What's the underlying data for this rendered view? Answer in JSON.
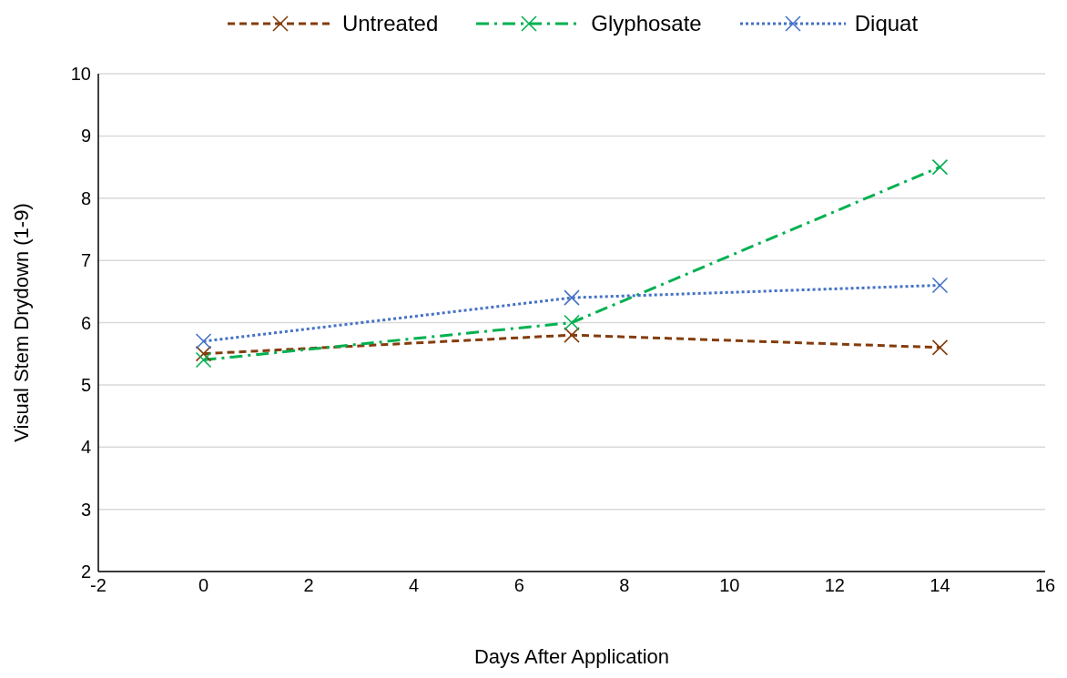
{
  "chart_data": {
    "type": "line",
    "xlabel": "Days After Application",
    "ylabel": "Visual Stem Drydown (1-9)",
    "x": [
      0,
      7,
      14
    ],
    "series": [
      {
        "name": "Untreated",
        "color": "#843c0c",
        "values": [
          5.5,
          5.8,
          5.6
        ],
        "line_style": "dashed"
      },
      {
        "name": "Glyphosate",
        "color": "#00b050",
        "values": [
          5.4,
          6.0,
          8.5
        ],
        "line_style": "dashdot"
      },
      {
        "name": "Diquat",
        "color": "#4472c4",
        "values": [
          5.7,
          6.4,
          6.6
        ],
        "line_style": "dotted"
      }
    ],
    "xlim": [
      -2,
      16
    ],
    "xticks": [
      -2,
      0,
      2,
      4,
      6,
      8,
      10,
      12,
      14,
      16
    ],
    "ylim": [
      2,
      10
    ],
    "yticks": [
      2,
      3,
      4,
      5,
      6,
      7,
      8,
      9,
      10
    ],
    "grid": "y",
    "legend": "top",
    "marker": "cross"
  }
}
